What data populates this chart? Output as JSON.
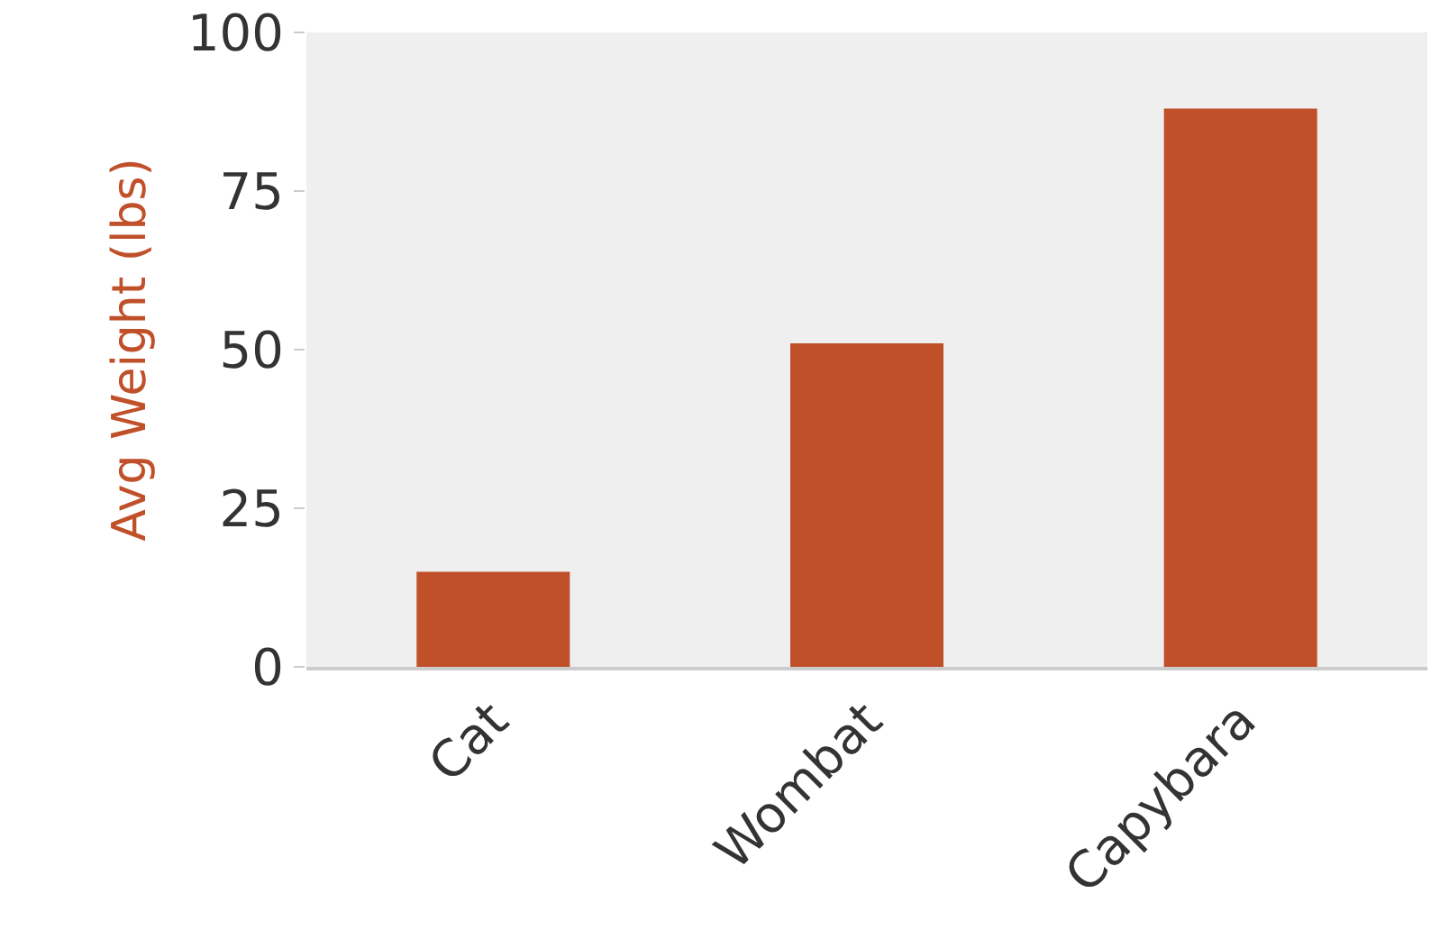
{
  "chart_data": {
    "type": "bar",
    "ylabel": "Avg Weight (lbs)",
    "categories": [
      "Cat",
      "Wombat",
      "Capybara"
    ],
    "values": [
      15,
      51,
      88
    ],
    "color": "#c0502a",
    "ylim": [
      0,
      100
    ],
    "yticks": [
      0,
      25,
      50,
      75,
      100
    ],
    "grid": false
  }
}
